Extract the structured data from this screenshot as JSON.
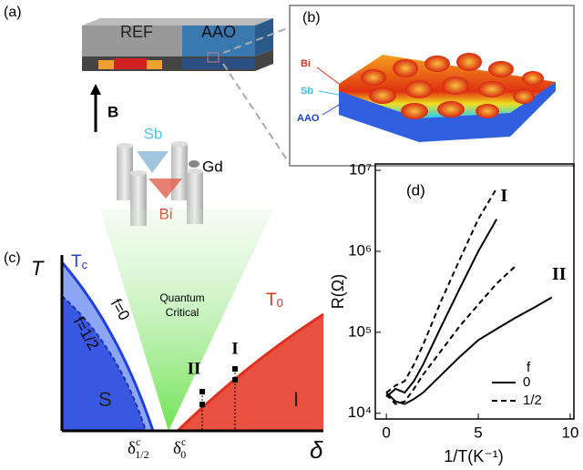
{
  "panel_a": {
    "label": "(a)",
    "ref": "REF",
    "aao": "AAO",
    "field": "B",
    "sb": "Sb",
    "gd": "Gd",
    "bi": "Bi"
  },
  "panel_b": {
    "label": "(b)",
    "bi": "Bi",
    "sb": "Sb",
    "aao": "AAO"
  },
  "panel_c": {
    "label": "(c)",
    "y_axis": "T",
    "x_axis": "δ",
    "tc": {
      "main": "T",
      "sub": "c"
    },
    "t0": {
      "main": "T",
      "sub": "0"
    },
    "f_zero": "f=0",
    "f_half": "f=1/2",
    "quantum": [
      "Quantum",
      "Critical"
    ],
    "phase_s": "S",
    "phase_i": "I",
    "point_ii": "II",
    "point_i": "I",
    "delta_half": {
      "main": "δ",
      "sup": "c",
      "sub": "1/2"
    },
    "delta_zero": {
      "main": "δ",
      "sup": "c",
      "sub": "0"
    }
  },
  "chart_data": {
    "type": "line",
    "label": "(d)",
    "xlabel": "1/T(K⁻¹)",
    "ylabel": "R(Ω)",
    "log_y": true,
    "xlim": [
      -0.6,
      10.2
    ],
    "ylim": [
      8500,
      12000000
    ],
    "xticks": [
      0,
      5,
      10
    ],
    "yticks": [
      {
        "value": 10000,
        "label": "10⁴"
      },
      {
        "value": 100000,
        "label": "10⁵"
      },
      {
        "value": 1000000,
        "label": "10⁶"
      },
      {
        "value": 10000000,
        "label": "10⁷"
      }
    ],
    "x": [
      0,
      0.5,
      1,
      1.5,
      2,
      3,
      4,
      5,
      6,
      7,
      8,
      9
    ],
    "legend": {
      "title": "f",
      "entries": [
        {
          "label": "0",
          "dash": "solid"
        },
        {
          "label": "1/2",
          "dash": "dashed"
        }
      ]
    },
    "curves": [
      {
        "label": "I",
        "f0": [
          16000,
          20000,
          18000,
          25000,
          40000,
          120000,
          350000,
          1000000,
          2500000,
          null,
          null,
          null
        ],
        "f_half": [
          18000,
          22000,
          25000,
          40000,
          70000,
          250000,
          800000,
          2500000,
          6000000,
          null,
          null,
          null
        ]
      },
      {
        "label": "II",
        "f0": [
          18000,
          14000,
          13000,
          15000,
          18000,
          30000,
          50000,
          80000,
          110000,
          150000,
          200000,
          270000
        ],
        "f_half": [
          17000,
          13000,
          14000,
          20000,
          30000,
          60000,
          120000,
          220000,
          400000,
          650000,
          null,
          null
        ]
      }
    ],
    "color": "#000000"
  }
}
